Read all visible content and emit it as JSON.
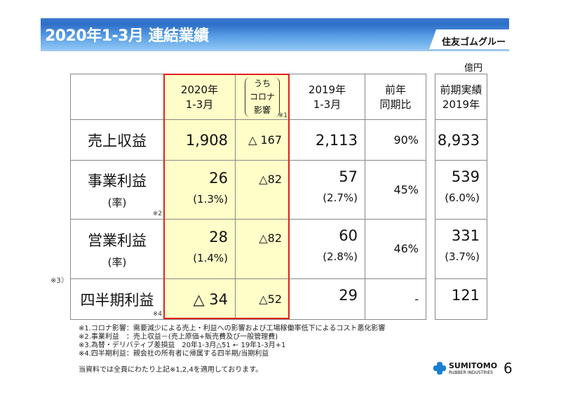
{
  "header": {
    "title": "2020年1-3月 連結業績",
    "group": "住友ゴムグループ"
  },
  "unit": "億円",
  "table": {
    "headers": {
      "c2020": [
        "2020年",
        "1-3月"
      ],
      "corona": [
        "うち",
        "コロナ",
        "影響"
      ],
      "corona_note": "※1",
      "c2019": [
        "2019年",
        "1-3月"
      ],
      "ratio": [
        "前年",
        "同期比"
      ],
      "prev": [
        "前期実績",
        "2019年"
      ]
    },
    "rows": [
      {
        "label": "売上収益",
        "sub": "",
        "note": "",
        "v2020": "1,908",
        "v2020_rate": "",
        "corona": "△ 167",
        "v2019": "2,113",
        "v2019_rate": "",
        "ratio": "90%",
        "prev": "8,933",
        "prev_rate": ""
      },
      {
        "label": "事業利益",
        "sub": "(率)",
        "note": "※2",
        "v2020": "26",
        "v2020_rate": "(1.3%)",
        "corona": "△82",
        "v2019": "57",
        "v2019_rate": "(2.7%)",
        "ratio": "45%",
        "prev": "539",
        "prev_rate": "(6.0%)"
      },
      {
        "label": "営業利益",
        "sub": "(率)",
        "note": "",
        "v2020": "28",
        "v2020_rate": "(1.4%)",
        "corona": "△82",
        "v2019": "60",
        "v2019_rate": "(2.8%)",
        "ratio": "46%",
        "prev": "331",
        "prev_rate": "(3.7%)"
      },
      {
        "label": "四半期利益",
        "sub": "",
        "note": "※4",
        "v2020": "△ 34",
        "v2020_rate": "",
        "corona": "△52",
        "v2019": "29",
        "v2019_rate": "",
        "ratio": "-",
        "prev": "121",
        "prev_rate": ""
      }
    ],
    "side_note": "※3"
  },
  "footnotes": [
    "※1.コロナ影響：需要減少による売上・利益への影響および工場稼働率低下によるコスト悪化影響",
    "※2.事業利益　：売上収益－(売上原価+販売費及び一般管理費)",
    "※3.為替・デリバティブ差損益　20年1-3月△51 ← 19年1-3月+1",
    "※4.四半期利益：親会社の所有者に帰属する四半期/当期利益"
  ],
  "applied_note": "当資料では全頁にわたり上記※1,2,4を適用しております。",
  "logo": {
    "line1": "SUMITOMO",
    "line2": "RUBBER INDUSTRIES"
  },
  "page_number": "6",
  "colors": {
    "highlight": "#fffec8",
    "redbox": "#e02020",
    "banner": "#2e6fc8"
  }
}
